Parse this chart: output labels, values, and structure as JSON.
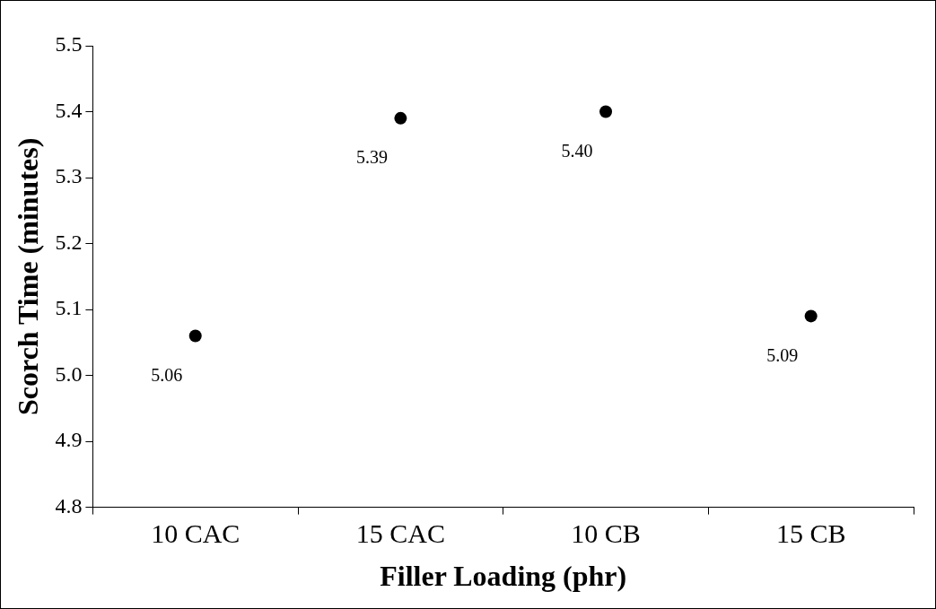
{
  "chart_data": {
    "type": "scatter",
    "xlabel": "Filler Loading (phr)",
    "ylabel": "Scorch Time (minutes)",
    "categories": [
      "10 CAC",
      "15 CAC",
      "10 CB",
      "15 CB"
    ],
    "values": [
      5.06,
      5.39,
      5.4,
      5.09
    ],
    "value_labels": [
      "5.06",
      "5.39",
      "5.40",
      "5.09"
    ],
    "color": "#000000",
    "marker": "circle",
    "grid": false,
    "legend": false,
    "ylim": [
      4.8,
      5.5
    ],
    "yticks": [
      4.8,
      4.9,
      {
        "value": 5,
        "label": "5.0"
      },
      5.1,
      5.2,
      5.3,
      5.4,
      5.5
    ]
  }
}
